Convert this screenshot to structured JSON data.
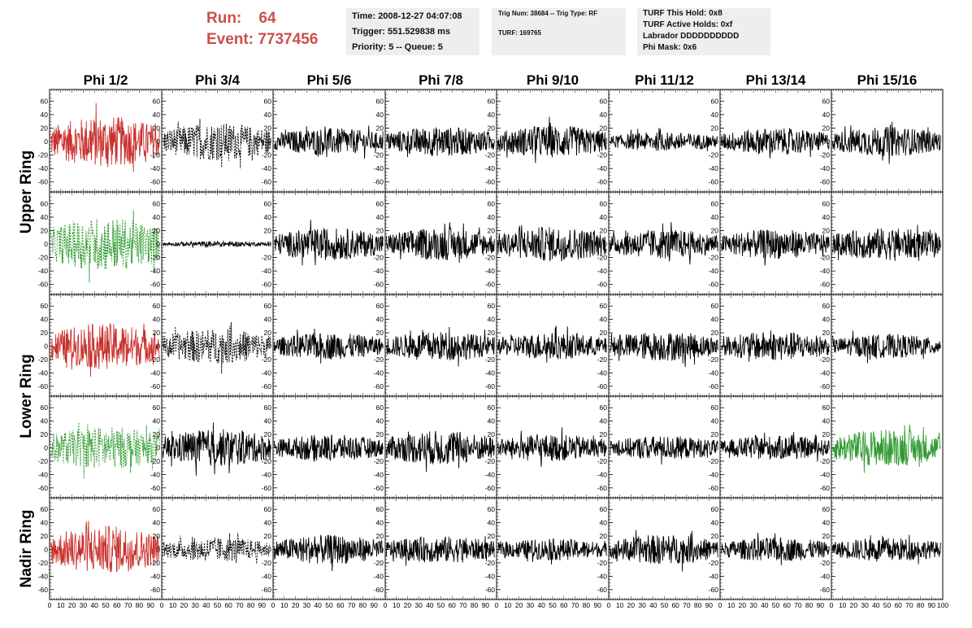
{
  "header": {
    "run_label": "Run:",
    "run_value": "64",
    "event_label": "Event:",
    "event_value": "7737456",
    "time": "Time: 2008-12-27 04:07:08",
    "trigger": "Trigger: 551.529838 ms",
    "priority": "Priority: 5 -- Queue: 5",
    "trig_num": "Trig Num: 38684 -- Trig Type: RF",
    "turf": "TURF: 169765",
    "turf_this_hold": "TURF This Hold: 0x8",
    "turf_active_holds": "TURF Active Holds: 0xf",
    "labrador": "Labrador DDDDDDDDDD",
    "phi_mask": "Phi Mask: 0x6"
  },
  "colors": {
    "red": "#c8302c",
    "green": "#2f9a2f",
    "black": "#000000",
    "accent_text": "#c9504c"
  },
  "chart_data": {
    "type": "line",
    "columns": [
      "Phi 1/2",
      "Phi 3/4",
      "Phi 5/6",
      "Phi 7/8",
      "Phi 9/10",
      "Phi 11/12",
      "Phi 13/14",
      "Phi 15/16"
    ],
    "rows": [
      "Upper Ring",
      "Upper Ring",
      "Lower Ring",
      "Lower Ring",
      "Nadir Ring"
    ],
    "row_labels": [
      {
        "label": "Upper Ring",
        "rows": [
          0,
          1
        ]
      },
      {
        "label": "Lower Ring",
        "rows": [
          2,
          3
        ]
      },
      {
        "label": "Nadir Ring",
        "rows": [
          4
        ]
      }
    ],
    "xlim": [
      0,
      100
    ],
    "ylim": [
      -70,
      70
    ],
    "x_ticks": [
      0,
      10,
      20,
      30,
      40,
      50,
      60,
      70,
      80,
      90,
      100
    ],
    "y_ticks": [
      -60,
      -40,
      -20,
      0,
      20,
      40,
      60
    ],
    "x_tick_text": "0 10 20 30 40 50 60 70 80 90 100",
    "grid": false,
    "panels": [
      [
        {
          "color": "red",
          "style": "solid",
          "amp": 38
        },
        {
          "color": "black",
          "style": "dashed",
          "amp": 28
        },
        {
          "color": "black",
          "style": "solid",
          "amp": 20
        },
        {
          "color": "black",
          "style": "solid",
          "amp": 22
        },
        {
          "color": "black",
          "style": "solid",
          "amp": 24
        },
        {
          "color": "black",
          "style": "solid",
          "amp": 14
        },
        {
          "color": "black",
          "style": "solid",
          "amp": 20
        },
        {
          "color": "black",
          "style": "solid",
          "amp": 22
        }
      ],
      [
        {
          "color": "green",
          "style": "dashed",
          "amp": 40
        },
        {
          "color": "black",
          "style": "solid",
          "amp": 4
        },
        {
          "color": "black",
          "style": "solid",
          "amp": 24
        },
        {
          "color": "black",
          "style": "solid",
          "amp": 24
        },
        {
          "color": "black",
          "style": "solid",
          "amp": 26
        },
        {
          "color": "black",
          "style": "solid",
          "amp": 22
        },
        {
          "color": "black",
          "style": "solid",
          "amp": 22
        },
        {
          "color": "black",
          "style": "solid",
          "amp": 24
        }
      ],
      [
        {
          "color": "red",
          "style": "solid",
          "amp": 34
        },
        {
          "color": "black",
          "style": "dashed",
          "amp": 26
        },
        {
          "color": "black",
          "style": "solid",
          "amp": 20
        },
        {
          "color": "black",
          "style": "solid",
          "amp": 22
        },
        {
          "color": "black",
          "style": "solid",
          "amp": 20
        },
        {
          "color": "black",
          "style": "solid",
          "amp": 22
        },
        {
          "color": "black",
          "style": "solid",
          "amp": 22
        },
        {
          "color": "black",
          "style": "solid",
          "amp": 18
        }
      ],
      [
        {
          "color": "green",
          "style": "dashed",
          "amp": 32
        },
        {
          "color": "black",
          "style": "solid",
          "amp": 28
        },
        {
          "color": "black",
          "style": "solid",
          "amp": 20
        },
        {
          "color": "black",
          "style": "solid",
          "amp": 26
        },
        {
          "color": "black",
          "style": "solid",
          "amp": 20
        },
        {
          "color": "black",
          "style": "solid",
          "amp": 18
        },
        {
          "color": "black",
          "style": "solid",
          "amp": 18
        },
        {
          "color": "green",
          "style": "solid",
          "amp": 28
        }
      ],
      [
        {
          "color": "red",
          "style": "solid",
          "amp": 36
        },
        {
          "color": "black",
          "style": "dashed",
          "amp": 18
        },
        {
          "color": "black",
          "style": "solid",
          "amp": 22
        },
        {
          "color": "black",
          "style": "solid",
          "amp": 20
        },
        {
          "color": "black",
          "style": "solid",
          "amp": 16
        },
        {
          "color": "black",
          "style": "solid",
          "amp": 22
        },
        {
          "color": "black",
          "style": "solid",
          "amp": 18
        },
        {
          "color": "black",
          "style": "solid",
          "amp": 18
        }
      ]
    ]
  }
}
